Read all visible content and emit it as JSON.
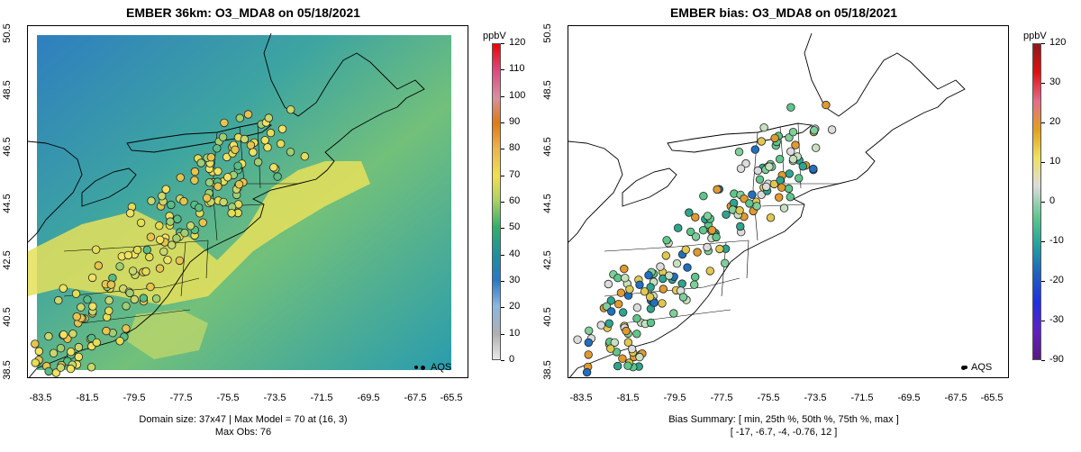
{
  "left_panel": {
    "title": "EMBER 36km: O3_MDA8 on 05/18/2021",
    "footer_line1": "Domain size: 37x47 | Max Model = 70 at (16, 3)",
    "footer_line2": "Max Obs: 76",
    "legend_label": "AQS",
    "colorbar": {
      "units": "ppbV",
      "labels": [
        "120",
        "110",
        "100",
        "90",
        "80",
        "70",
        "60",
        "50",
        "40",
        "30",
        "20",
        "10",
        "0"
      ],
      "colors": [
        "#f40000",
        "#e0457d",
        "#d9909f",
        "#e07a10",
        "#eeb24a",
        "#f0e050",
        "#a8d060",
        "#30b06a",
        "#1a90a0",
        "#2878c8",
        "#88b8e0",
        "#b0b0b0",
        "#e8e8e8"
      ]
    }
  },
  "right_panel": {
    "title": "EMBER bias: O3_MDA8 on 05/18/2021",
    "footer_line1": "Bias Summary: [ min, 25th %, 50th %, 75th %, max ]",
    "footer_line2": "[ -17,  -6.7,  -4,  -0.76,  12 ]",
    "legend_label": "AQS",
    "colorbar": {
      "units": "ppbV",
      "labels": [
        "120",
        "30",
        "20",
        "10",
        "0",
        "-10",
        "-20",
        "-30",
        "-90"
      ],
      "colors": [
        "#8b1a1a",
        "#e01010",
        "#e06e8c",
        "#e0a020",
        "#f0e060",
        "#dcdcdc",
        "#5ec68a",
        "#20a0a0",
        "#2060c0",
        "#2030e0",
        "#6020c0",
        "#5a1a80"
      ]
    }
  },
  "axes": {
    "x_ticks": [
      "-83.5",
      "-81.5",
      "-79.5",
      "-77.5",
      "-75.5",
      "-73.5",
      "-71.5",
      "-69.5",
      "-67.5",
      "-65.5"
    ],
    "y_ticks": [
      "50.5",
      "48.5",
      "46.5",
      "44.5",
      "42.5",
      "40.5",
      "38.5"
    ],
    "xlim": [
      -84.2,
      -65.0
    ],
    "ylim": [
      38.3,
      50.6
    ]
  },
  "colors": {
    "ocean": "#2a9cae",
    "low_ozone": "#2f7fc0",
    "mid_ozone": "#4fb58a",
    "high_ozone": "#e9e25a",
    "outline": "#000000"
  }
}
